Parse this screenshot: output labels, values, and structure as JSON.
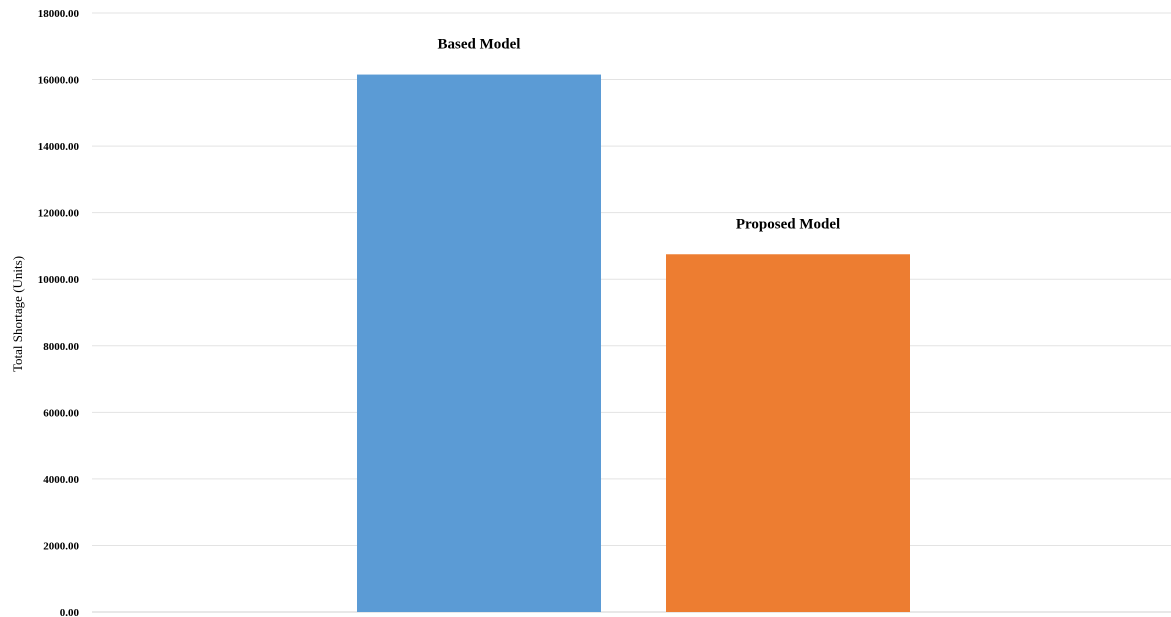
{
  "chart_data": {
    "type": "bar",
    "categories": [
      "Based Model",
      "Proposed Model"
    ],
    "values": [
      16150,
      10750
    ],
    "data_labels": [
      "Based Model",
      "Proposed Model"
    ],
    "ylabel": "Total Shortage (Units)",
    "xlabel": "",
    "ylim": [
      0,
      18000
    ],
    "y_ticks": [
      "0.00",
      "2000.00",
      "4000.00",
      "6000.00",
      "8000.00",
      "10000.00",
      "12000.00",
      "14000.00",
      "16000.00",
      "18000.00"
    ],
    "colors": [
      "#5b9bd5",
      "#ed7d31"
    ],
    "grid": true,
    "legend": "none"
  }
}
